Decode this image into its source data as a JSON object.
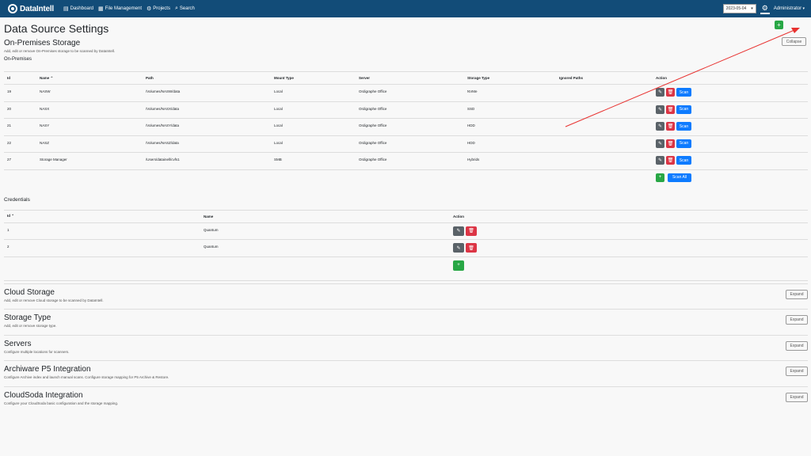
{
  "nav": {
    "brand": "DataIntell",
    "links": [
      {
        "icon": "▤",
        "label": "Dashboard"
      },
      {
        "icon": "▦",
        "label": "File Management"
      },
      {
        "icon": "⚙",
        "label": "Projects"
      },
      {
        "icon": "⌕",
        "label": "Search"
      }
    ],
    "date": "2023-05-04",
    "user": "Administrator"
  },
  "page_title": "Data Source Settings",
  "add_label": "+",
  "onprem": {
    "title": "On-Premises Storage",
    "desc": "Add, edit or remove On-Premises storage to be scanned by DataIntell.",
    "collapse": "Collapse",
    "subtitle": "On-Premises",
    "headers": [
      "Id",
      "Name ⌃",
      "Path",
      "Mount Type",
      "Server",
      "Storage Type",
      "Ignored Paths",
      "Action"
    ],
    "rows": [
      [
        "19",
        "NASW",
        "/Volumes/NASW/data",
        "Local",
        "Ordigraphe Office",
        "NVMe",
        ""
      ],
      [
        "20",
        "NASX",
        "/Volumes/NASX/data",
        "Local",
        "Ordigraphe Office",
        "SSD",
        ""
      ],
      [
        "21",
        "NASY",
        "/Volumes/NASY/data",
        "Local",
        "Ordigraphe Office",
        "HDD",
        ""
      ],
      [
        "22",
        "NASZ",
        "/Volumes/NASZ/data",
        "Local",
        "Ordigraphe Office",
        "HDD",
        ""
      ],
      [
        "27",
        "Storage Manager",
        "/Users/datainell/cvfs1",
        "SMB",
        "Ordigraphe Office",
        "Hybrids",
        ""
      ]
    ],
    "scan_label": "Scan",
    "scan_all": "Scan All"
  },
  "credentials": {
    "title": "Credentials",
    "headers": [
      "Id ⌃",
      "Name",
      "Action"
    ],
    "rows": [
      [
        "1",
        "Quantum"
      ],
      [
        "2",
        "Quantum"
      ]
    ]
  },
  "sections": [
    {
      "title": "Cloud Storage",
      "desc": "Add, edit or remove Cloud storage to be scanned by DataIntell.",
      "btn": "Expand"
    },
    {
      "title": "Storage Type",
      "desc": "Add, edit or remove storage type.",
      "btn": "Expand"
    },
    {
      "title": "Servers",
      "desc": "Configure multiple locations for scanners.",
      "btn": "Expand"
    },
    {
      "title": "Archiware P5 Integration",
      "desc": "Configure Archive index and launch manual scans. Configure storage mapping for P5 Archive & Restore.",
      "btn": "Expand"
    },
    {
      "title": "CloudSoda Integration",
      "desc": "Configure your CloudSoda basic configuration and the storage mapping.",
      "btn": "Expand"
    }
  ],
  "colors": {
    "nav": "#124c78",
    "green": "#28a745",
    "red": "#dc3545",
    "blue": "#0d7bff",
    "grey": "#5a6268",
    "annotation": "#e8312f"
  }
}
